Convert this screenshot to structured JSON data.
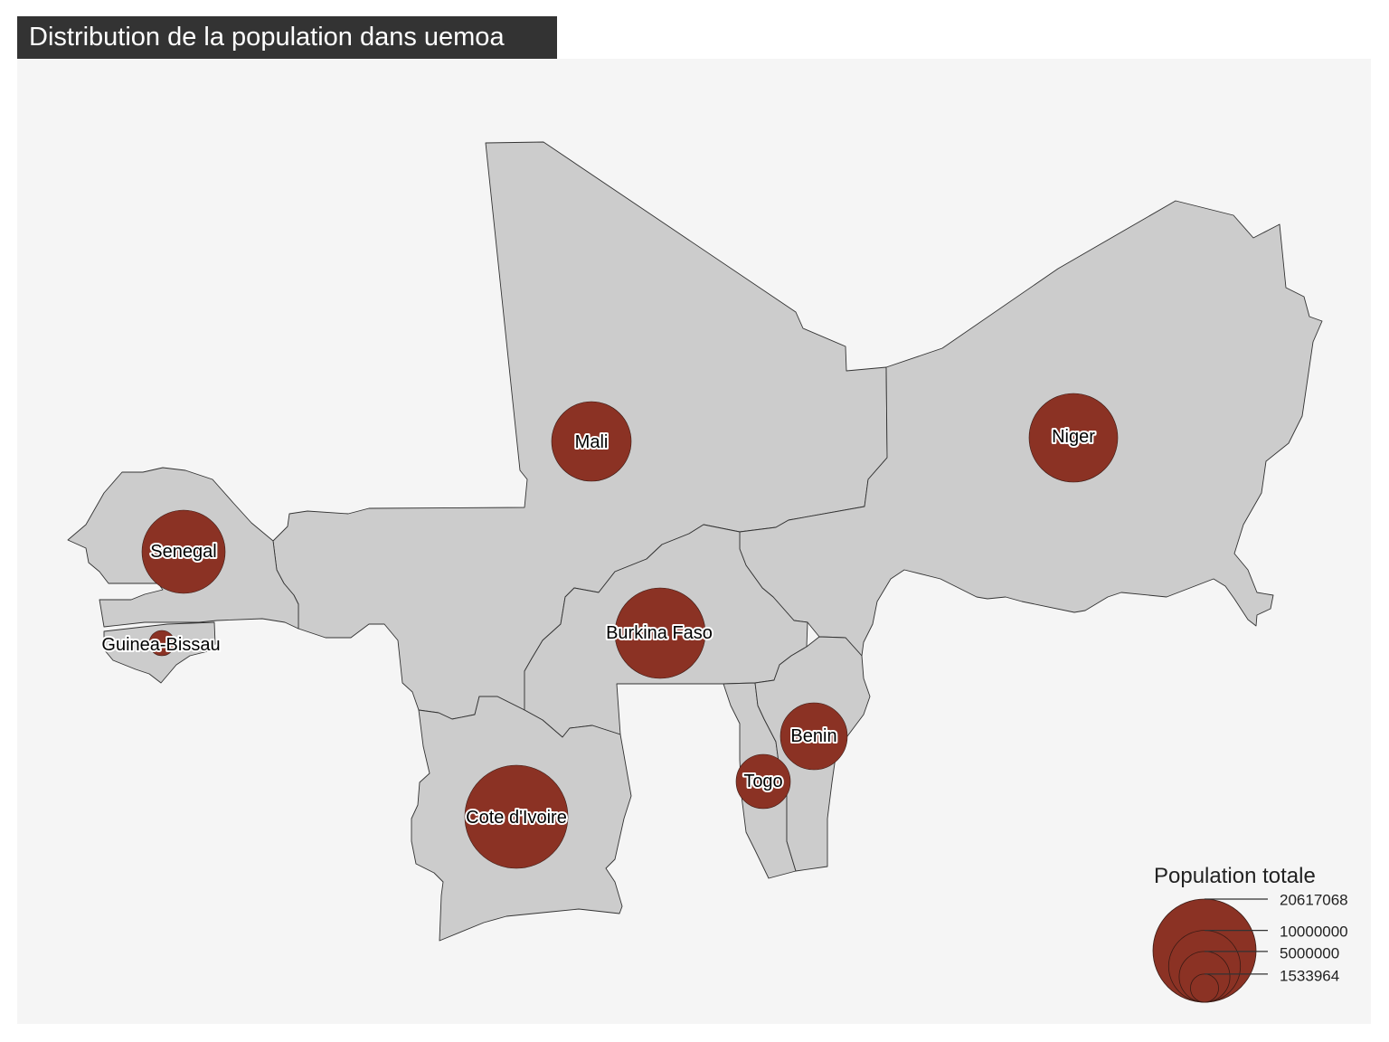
{
  "title": "Distribution de la population dans uemoa",
  "colors": {
    "panel_background": "#f5f5f5",
    "country_fill": "#cccccc",
    "country_stroke": "#333333",
    "bubble_fill": "#8b3224",
    "title_background": "#333333",
    "title_text": "#ffffff"
  },
  "countries": [
    {
      "key": "mali",
      "label": "Mali"
    },
    {
      "key": "niger",
      "label": "Niger"
    },
    {
      "key": "senegal",
      "label": "Senegal"
    },
    {
      "key": "guinea-bissau",
      "label": "Guinea-Bissau"
    },
    {
      "key": "burkina-faso",
      "label": "Burkina Faso"
    },
    {
      "key": "cote-divoire",
      "label": "Cote d'Ivoire"
    },
    {
      "key": "benin",
      "label": "Benin"
    },
    {
      "key": "togo",
      "label": "Togo"
    }
  ],
  "legend": {
    "title": "Population totale",
    "breaks": [
      {
        "label": "20617068",
        "value": 20617068
      },
      {
        "label": "10000000",
        "value": 10000000
      },
      {
        "label": "5000000",
        "value": 5000000
      },
      {
        "label": "1533964",
        "value": 1533964
      }
    ]
  }
}
